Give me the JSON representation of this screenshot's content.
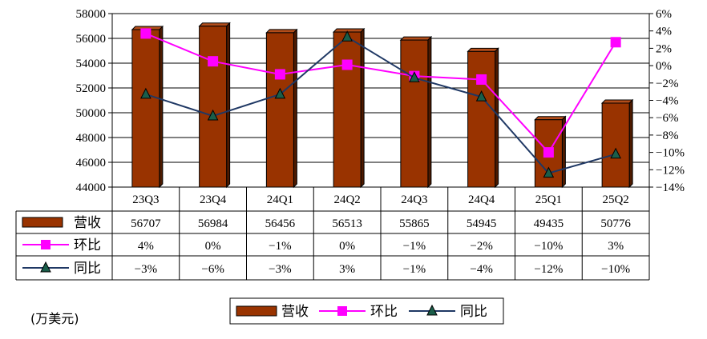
{
  "chart_data": {
    "type": "bar",
    "categories": [
      "23Q3",
      "23Q4",
      "24Q1",
      "24Q2",
      "24Q3",
      "24Q4",
      "25Q1",
      "25Q2"
    ],
    "series": [
      {
        "name": "营收",
        "type": "bar",
        "axis": "left",
        "values": [
          56707,
          56984,
          56456,
          56513,
          55865,
          54945,
          49435,
          50776
        ],
        "labels": [
          "56707",
          "56984",
          "56456",
          "56513",
          "55865",
          "54945",
          "49435",
          "50776"
        ],
        "color": "#993300"
      },
      {
        "name": "环比",
        "type": "line",
        "axis": "right",
        "marker": "square",
        "values": [
          3.7,
          0.5,
          -1.0,
          0.1,
          -1.2,
          -1.6,
          -10.0,
          2.7
        ],
        "labels": [
          "4%",
          "0%",
          "−1%",
          "0%",
          "−1%",
          "−2%",
          "−10%",
          "3%"
        ],
        "color": "#ff00ff"
      },
      {
        "name": "同比",
        "type": "line",
        "axis": "right",
        "marker": "triangle",
        "values": [
          -3.3,
          -5.8,
          -3.3,
          3.3,
          -1.4,
          -3.6,
          -12.4,
          -10.2
        ],
        "labels": [
          "−3%",
          "−6%",
          "−3%",
          "3%",
          "−1%",
          "−4%",
          "−12%",
          "−10%"
        ],
        "color": "#1f3864"
      }
    ],
    "y_left": {
      "min": 44000,
      "max": 58000,
      "step": 2000,
      "ticks": [
        "44000",
        "46000",
        "48000",
        "50000",
        "52000",
        "54000",
        "56000",
        "58000"
      ]
    },
    "y_right": {
      "min": -14,
      "max": 6,
      "step": 2,
      "ticks": [
        "−14%",
        "−12%",
        "−10%",
        "−8%",
        "−6%",
        "−4%",
        "−2%",
        "0%",
        "2%",
        "4%",
        "6%"
      ]
    },
    "grid": true,
    "legend_position": "bottom"
  },
  "unit_label": "(万美元)"
}
